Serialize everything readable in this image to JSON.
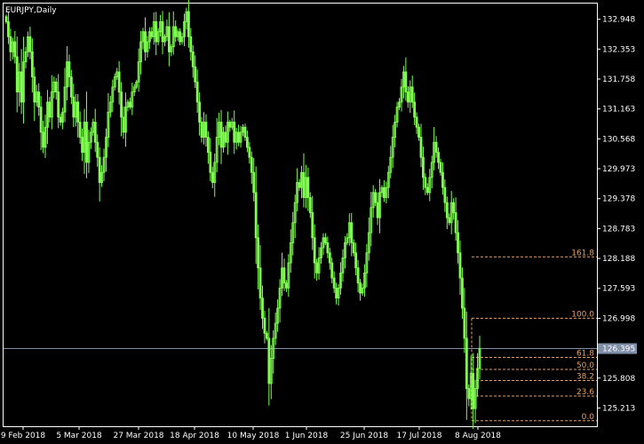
{
  "chart_data": {
    "type": "candlestick",
    "symbol_label": "EURJPY,Daily",
    "colors": {
      "background": "#000000",
      "frame": "#ffffff",
      "candle": "#7fff50",
      "current_price_line": "#8090a8",
      "current_price_box": "#8090a8",
      "fib_line": "#e8a060",
      "fib_label": "#e8a060",
      "axis_text": "#ffffff"
    },
    "y_ticks": [
      "132.948",
      "132.353",
      "131.758",
      "131.163",
      "130.568",
      "129.973",
      "129.378",
      "128.783",
      "128.188",
      "127.593",
      "126.998",
      "125.808",
      "125.213"
    ],
    "x_ticks": [
      "9 Feb 2018",
      "5 Mar 2018",
      "27 Mar 2018",
      "18 Apr 2018",
      "10 May 2018",
      "1 Jun 2018",
      "25 Jun 2018",
      "17 Jul 2018",
      "8 Aug 2018"
    ],
    "ylim": [
      124.85,
      133.26
    ],
    "current_price": "126.395",
    "fibonacci": {
      "high": 126.998,
      "low": 124.96,
      "levels": [
        {
          "label": "161.8",
          "price": 128.22
        },
        {
          "label": "100.0",
          "price": 126.998
        },
        {
          "label": "61.8",
          "price": 126.22
        },
        {
          "label": "50.0",
          "price": 125.98
        },
        {
          "label": "38.2",
          "price": 125.76
        },
        {
          "label": "23.6",
          "price": 125.45
        },
        {
          "label": "0.0",
          "price": 124.96
        }
      ]
    },
    "candles_close": [
      132.9,
      132.6,
      132.3,
      132.5,
      132.2,
      131.5,
      131.9,
      131.3,
      132.1,
      132.3,
      132.6,
      132.3,
      131.8,
      131.3,
      131.5,
      131.2,
      130.7,
      130.4,
      130.8,
      131.3,
      131.0,
      131.5,
      131.7,
      131.5,
      131.0,
      130.9,
      131.1,
      131.6,
      132.1,
      131.8,
      131.4,
      131.0,
      131.3,
      130.9,
      130.6,
      130.3,
      130.9,
      130.1,
      130.5,
      130.7,
      130.9,
      130.5,
      130.2,
      129.7,
      129.9,
      130.2,
      130.6,
      131.1,
      131.3,
      131.6,
      131.8,
      131.9,
      131.5,
      131.0,
      130.7,
      131.2,
      131.3,
      131.2,
      131.5,
      131.6,
      131.7,
      132.1,
      132.5,
      132.7,
      132.3,
      132.5,
      132.7,
      132.6,
      132.9,
      132.5,
      132.7,
      132.9,
      132.5,
      132.6,
      132.8,
      132.3,
      132.4,
      132.8,
      132.6,
      132.7,
      132.5,
      132.6,
      132.9,
      133.1,
      132.6,
      132.3,
      132.0,
      131.7,
      131.3,
      130.9,
      130.6,
      130.9,
      130.6,
      130.3,
      129.9,
      129.7,
      130.1,
      130.6,
      130.9,
      130.4,
      130.7,
      130.5,
      130.9,
      130.8,
      130.9,
      130.5,
      130.7,
      130.5,
      130.7,
      130.8,
      130.6,
      130.4,
      130.2,
      129.9,
      129.5,
      128.6,
      128.0,
      127.4,
      127.0,
      126.7,
      126.6,
      125.7,
      126.2,
      126.6,
      126.9,
      127.2,
      127.6,
      128.0,
      127.7,
      127.6,
      128.1,
      128.5,
      128.9,
      129.3,
      129.7,
      129.6,
      129.9,
      129.4,
      129.8,
      129.4,
      129.1,
      128.6,
      128.1,
      127.9,
      128.2,
      128.4,
      128.6,
      128.5,
      128.3,
      128.1,
      127.8,
      127.6,
      127.4,
      127.6,
      127.9,
      128.2,
      128.5,
      128.6,
      128.9,
      128.5,
      128.3,
      128.0,
      127.7,
      127.5,
      127.6,
      127.9,
      128.3,
      128.7,
      129.2,
      129.5,
      129.3,
      129.0,
      129.5,
      129.6,
      129.4,
      129.6,
      129.9,
      130.2,
      130.6,
      130.9,
      131.2,
      131.3,
      131.6,
      131.9,
      131.5,
      131.3,
      131.6,
      131.3,
      131.0,
      130.8,
      130.6,
      130.2,
      129.8,
      129.6,
      129.5,
      129.8,
      130.1,
      130.5,
      130.3,
      130.1,
      129.9,
      129.6,
      129.3,
      129.0,
      128.9,
      129.3,
      129.1,
      128.7,
      128.3,
      127.8,
      127.2,
      126.6,
      125.6,
      125.4,
      125.9,
      125.2,
      125.6,
      126.0,
      126.4
    ]
  }
}
